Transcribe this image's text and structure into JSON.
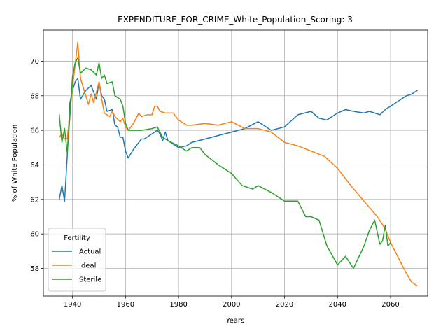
{
  "chart_data": {
    "type": "line",
    "title": "EXPENDITURE_FOR_CRIME_White_Population_Scoring: 3",
    "xlabel": "Years",
    "ylabel": "% of White Population",
    "xlim": [
      1929,
      2074
    ],
    "ylim": [
      56.4,
      71.8
    ],
    "xticks": [
      1940,
      1960,
      1980,
      2000,
      2020,
      2040,
      2060
    ],
    "yticks": [
      58,
      60,
      62,
      64,
      66,
      68,
      70
    ],
    "grid": true,
    "legend": {
      "title": "Fertility",
      "placement": "lower-left"
    },
    "series": [
      {
        "name": "Actual",
        "color": "#1f77b4",
        "x": [
          1935,
          1936,
          1937,
          1938,
          1939,
          1940,
          1941,
          1942,
          1943,
          1945,
          1947,
          1949,
          1950,
          1951,
          1952,
          1953,
          1955,
          1956,
          1957,
          1958,
          1959,
          1960,
          1961,
          1963,
          1965,
          1966,
          1967,
          1970,
          1972,
          1973,
          1974,
          1975,
          1976,
          1980,
          1983,
          1985,
          1990,
          1995,
          2000,
          2005,
          2010,
          2015,
          2020,
          2025,
          2030,
          2033,
          2036,
          2040,
          2043,
          2046,
          2050,
          2052,
          2054,
          2056,
          2058,
          2060,
          2062,
          2064,
          2066,
          2068,
          2070
        ],
        "values": [
          62.0,
          62.8,
          61.9,
          64.5,
          67.6,
          68.3,
          68.8,
          69.0,
          67.8,
          68.3,
          68.6,
          67.8,
          68.8,
          68.0,
          67.8,
          67.1,
          67.2,
          66.3,
          66.2,
          65.6,
          65.6,
          64.8,
          64.4,
          64.9,
          65.3,
          65.5,
          65.5,
          65.8,
          66.0,
          65.8,
          65.4,
          65.9,
          65.4,
          65.0,
          65.1,
          65.3,
          65.5,
          65.7,
          65.9,
          66.1,
          66.5,
          66.0,
          66.2,
          66.9,
          67.1,
          66.7,
          66.6,
          67.0,
          67.2,
          67.1,
          67.0,
          67.1,
          67.0,
          66.9,
          67.2,
          67.4,
          67.6,
          67.8,
          68.0,
          68.1,
          68.3
        ]
      },
      {
        "name": "Ideal",
        "color": "#ff7f0e",
        "x": [
          1935,
          1936,
          1937,
          1938,
          1939,
          1940,
          1941,
          1942,
          1943,
          1945,
          1946,
          1947,
          1948,
          1950,
          1951,
          1952,
          1954,
          1955,
          1956,
          1958,
          1959,
          1960,
          1961,
          1963,
          1965,
          1966,
          1968,
          1970,
          1971,
          1972,
          1973,
          1975,
          1978,
          1980,
          1983,
          1985,
          1990,
          1995,
          2000,
          2005,
          2010,
          2015,
          2020,
          2025,
          2030,
          2035,
          2040,
          2045,
          2050,
          2055,
          2058,
          2060,
          2062,
          2064,
          2066,
          2068,
          2070
        ],
        "values": [
          65.6,
          65.8,
          65.5,
          65.5,
          67.0,
          68.5,
          69.8,
          71.1,
          69.0,
          68.0,
          67.5,
          68.1,
          67.6,
          68.8,
          67.8,
          67.0,
          66.8,
          67.1,
          66.8,
          66.5,
          66.7,
          66.2,
          66.0,
          66.4,
          67.0,
          66.8,
          66.9,
          66.9,
          67.4,
          67.4,
          67.1,
          67.0,
          67.0,
          66.6,
          66.3,
          66.3,
          66.4,
          66.3,
          66.5,
          66.1,
          66.1,
          65.9,
          65.3,
          65.1,
          64.8,
          64.5,
          63.8,
          62.8,
          61.9,
          61.0,
          60.3,
          59.5,
          58.9,
          58.3,
          57.7,
          57.2,
          57.0
        ]
      },
      {
        "name": "Sterile",
        "color": "#2ca02c",
        "x": [
          1935,
          1936,
          1937,
          1938,
          1939,
          1940,
          1941,
          1942,
          1943,
          1945,
          1947,
          1949,
          1950,
          1951,
          1952,
          1953,
          1955,
          1956,
          1958,
          1959,
          1960,
          1961,
          1963,
          1965,
          1966,
          1970,
          1972,
          1974,
          1976,
          1980,
          1983,
          1985,
          1988,
          1990,
          1995,
          2000,
          2004,
          2008,
          2010,
          2015,
          2020,
          2025,
          2028,
          2030,
          2033,
          2036,
          2040,
          2043,
          2046,
          2050,
          2052,
          2054,
          2056,
          2057,
          2058,
          2059,
          2060
        ],
        "values": [
          66.9,
          65.3,
          66.1,
          64.7,
          66.8,
          69.1,
          69.9,
          70.2,
          69.3,
          69.6,
          69.5,
          69.2,
          69.9,
          69.0,
          69.2,
          68.7,
          68.8,
          68.0,
          67.8,
          67.4,
          66.4,
          66.0,
          66.0,
          66.0,
          66.0,
          66.1,
          66.2,
          65.6,
          65.4,
          65.1,
          64.8,
          65.0,
          65.0,
          64.6,
          64.0,
          63.5,
          62.8,
          62.6,
          62.8,
          62.4,
          61.9,
          61.9,
          61.0,
          61.0,
          60.8,
          59.3,
          58.2,
          58.7,
          58.0,
          59.3,
          60.2,
          60.8,
          59.4,
          59.6,
          60.5,
          59.3,
          59.5
        ]
      }
    ]
  }
}
